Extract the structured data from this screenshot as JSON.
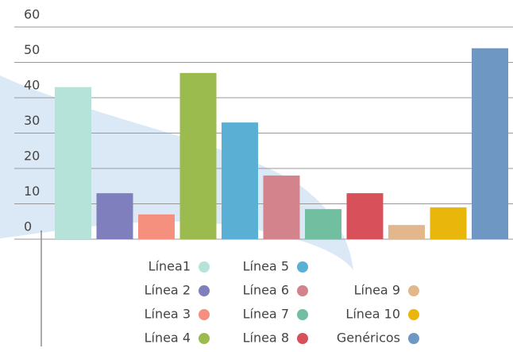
{
  "chart_data": {
    "type": "bar",
    "categories": [
      "Línea1",
      "Línea 2",
      "Línea 3",
      "Línea 4",
      "Línea 5",
      "Línea 6",
      "Línea 7",
      "Línea 8",
      "Línea 9",
      "Línea 10",
      "Genéricos"
    ],
    "values": [
      43,
      13,
      7,
      47,
      33,
      18,
      8.5,
      13,
      4,
      9,
      54
    ],
    "colors": [
      "#b5e3da",
      "#7f7fbd",
      "#f5907f",
      "#9cbb4f",
      "#5aafd5",
      "#d3838b",
      "#72bea0",
      "#d8505a",
      "#e3b78c",
      "#e9b60c",
      "#6f97c4"
    ],
    "ylim": [
      0,
      60
    ],
    "yticks": [
      0,
      10,
      20,
      30,
      40,
      50,
      60
    ],
    "grid": true
  }
}
